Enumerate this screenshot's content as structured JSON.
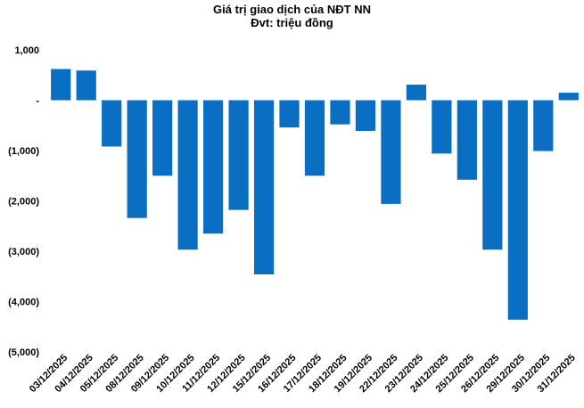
{
  "chart_data": {
    "type": "bar",
    "title": "Giá trị giao dịch của NĐT NN",
    "subtitle": "Đvt: triệu đồng",
    "categories": [
      "03/12/2025",
      "04/12/2025",
      "05/12/2025",
      "08/12/2025",
      "09/12/2025",
      "10/12/2025",
      "11/12/2025",
      "12/12/2025",
      "15/12/2025",
      "16/12/2025",
      "17/12/2025",
      "18/12/2025",
      "19/12/2025",
      "22/12/2025",
      "23/12/2025",
      "24/12/2025",
      "25/12/2025",
      "26/12/2025",
      "29/12/2025",
      "30/12/2025",
      "31/12/2025"
    ],
    "values": [
      620,
      590,
      -920,
      -2340,
      -1500,
      -2970,
      -2650,
      -2180,
      -3460,
      -540,
      -1500,
      -480,
      -610,
      -2060,
      310,
      -1060,
      -1580,
      -2970,
      -4360,
      -1010,
      150
    ],
    "ylim": [
      -5000,
      1000
    ],
    "yticks": [
      1000,
      0,
      -1000,
      -2000,
      -3000,
      -4000,
      -5000
    ],
    "ytick_labels": [
      "1,000",
      "-",
      "(1,000)",
      "(2,000)",
      "(3,000)",
      "(4,000)",
      "(5,000)"
    ],
    "bar_color": "#0a6fc2",
    "grid": false,
    "legend": "none"
  }
}
